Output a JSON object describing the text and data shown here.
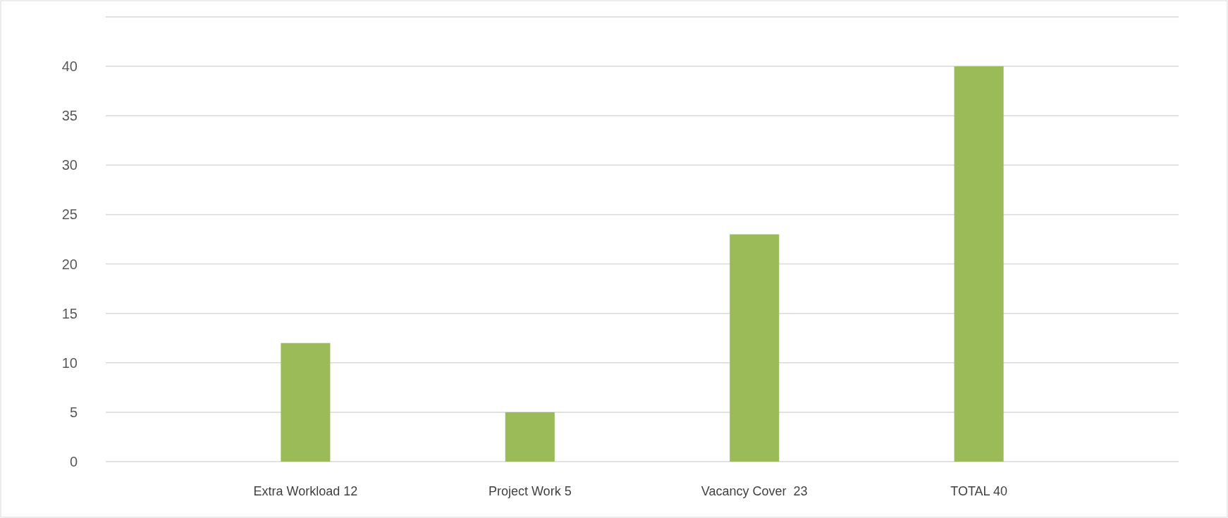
{
  "chart_data": {
    "type": "bar",
    "categories": [
      "Extra Workload 12",
      "Project Work 5",
      "Vacancy Cover  23",
      "TOTAL 40"
    ],
    "values": [
      12,
      5,
      23,
      40
    ],
    "color": "#9bbb59",
    "ylim": [
      0,
      45
    ],
    "yticks": [
      0,
      5,
      10,
      15,
      20,
      25,
      30,
      35,
      40,
      {
        "value": 45,
        "label": null
      }
    ],
    "grid": "y"
  }
}
